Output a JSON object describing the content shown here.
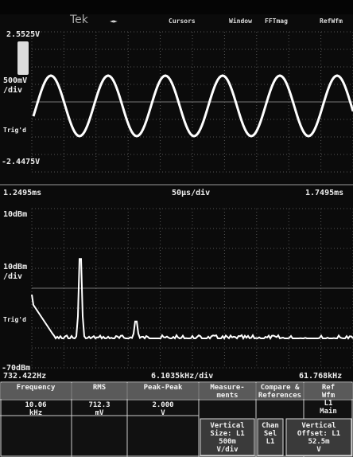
{
  "header": {
    "brand": "Tek",
    "menu": [
      "◄►",
      "Cursors",
      "Window",
      "FFTmag",
      "RefWfm"
    ]
  },
  "time_panel": {
    "top_level": "2.5525V",
    "scale": [
      "500mV",
      "/div"
    ],
    "trigger": "Trig'd",
    "bottom_level": "-2.4475V",
    "start": "1.2495ms",
    "timebase": "50µs/div",
    "end": "1.7495ms"
  },
  "spectrum_panel": {
    "top_level": "10dBm",
    "scale": [
      "10dBm",
      "/div"
    ],
    "trigger": "Trig'd",
    "bottom_level": "-70dBm",
    "start": "732.422Hz",
    "span": "6.1035kHz/div",
    "end": "61.768kHz"
  },
  "measurements": {
    "headers": [
      [
        "Frequency"
      ],
      [
        "RMS"
      ],
      [
        "Peak-Peak"
      ],
      [
        "Measure-",
        "ments"
      ],
      [
        "Compare &",
        "References"
      ],
      [
        "Ref",
        "Wfm",
        "L1",
        "Main"
      ]
    ],
    "values": [
      [
        "10.06",
        "kHz"
      ],
      [
        "712.3",
        "mV"
      ],
      [
        "2.000",
        "V"
      ]
    ],
    "controls": [
      [
        "Vertical",
        "Size: L1",
        "500m",
        "V/div"
      ],
      [
        "Chan",
        "Sel",
        "L1"
      ],
      [
        "Vertical",
        "Offset: L1",
        "52.5m",
        "V"
      ]
    ]
  }
}
